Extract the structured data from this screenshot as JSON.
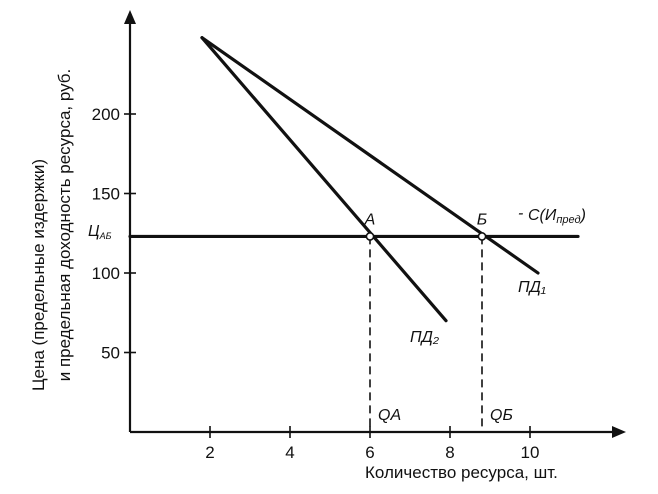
{
  "chart_data": {
    "type": "line",
    "title": "",
    "xlabel": "Количество ресурса, шт.",
    "ylabel_line1": "Цена (предельные издержки)",
    "ylabel_line2": "и предельная доходность ресурса, руб.",
    "xlim": [
      0,
      12
    ],
    "ylim": [
      0,
      260
    ],
    "x_ticks": [
      2,
      4,
      6,
      8,
      10
    ],
    "y_ticks": [
      50,
      100,
      150,
      200
    ],
    "grid": false,
    "series": [
      {
        "name": "ПД₁",
        "x": [
          1.8,
          10.2
        ],
        "y": [
          248,
          100
        ],
        "color": "#111111"
      },
      {
        "name": "ПД₂",
        "x": [
          1.8,
          7.9
        ],
        "y": [
          248,
          70
        ],
        "color": "#111111"
      },
      {
        "name": "С(Ипред)",
        "x": [
          0,
          11.2
        ],
        "y": [
          123,
          123
        ],
        "color": "#111111"
      }
    ],
    "points": [
      {
        "label": "А",
        "x": 6.0,
        "y": 123,
        "q_label": "QА"
      },
      {
        "label": "Б",
        "x": 8.8,
        "y": 123,
        "q_label": "QБ"
      }
    ],
    "y_level_label": "ЦАБ",
    "annotations": {
      "pd1": "ПД₁",
      "pd2": "ПД₂",
      "c_main": "С(И",
      "c_sub": "пред",
      "c_close": ")",
      "c_dash": "-",
      "tsab_main": "Ц",
      "tsab_sub": "АБ"
    }
  }
}
